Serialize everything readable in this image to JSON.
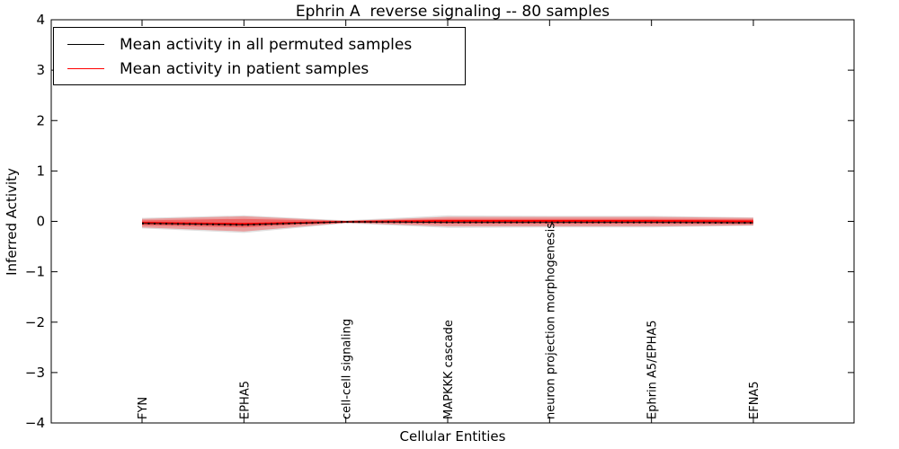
{
  "title": "Ephrin A  reverse signaling -- 80 samples",
  "axes": {
    "xlabel": "Cellular Entities",
    "ylabel": "Inferred Activity"
  },
  "legend": {
    "items": [
      {
        "label": "Mean activity in all permuted samples",
        "color": "#000000"
      },
      {
        "label": "Mean activity in patient samples",
        "color": "#ff0000"
      }
    ]
  },
  "colors": {
    "patient_line": "#ff0000",
    "permuted_line": "#000000",
    "patient_band_fill": "rgba(255,0,0,0.30)",
    "patient_inner_band_fill": "rgba(255,0,0,0.35)",
    "permuted_band_fill": "rgba(0,0,0,0.12)",
    "frame": "#000000",
    "background": "#ffffff"
  },
  "chart_data": {
    "type": "line",
    "title": "Ephrin A  reverse signaling -- 80 samples",
    "xlabel": "Cellular Entities",
    "ylabel": "Inferred Activity",
    "ylim": [
      -4,
      4
    ],
    "yticks": [
      -4,
      -3,
      -2,
      -1,
      0,
      1,
      2,
      3,
      4
    ],
    "grid": false,
    "legend_position": "upper left",
    "categories": [
      "FYN",
      "EPHA5",
      "cell-cell signaling",
      "MAPKKK cascade",
      "neuron projection morphogenesis",
      "Ephrin A5/EPHA5",
      "EFNA5"
    ],
    "series": [
      {
        "name": "Mean activity in all permuted samples",
        "color": "#000000",
        "line_style": "dotted",
        "values": [
          -0.04,
          -0.07,
          -0.01,
          -0.02,
          -0.02,
          -0.02,
          -0.03
        ]
      },
      {
        "name": "Mean activity in patient samples",
        "color": "#ff0000",
        "line_style": "solid",
        "values": [
          -0.03,
          -0.05,
          -0.01,
          0.01,
          0.01,
          0.01,
          0.0
        ]
      }
    ],
    "bands": [
      {
        "name": "permuted samples spread",
        "fill": "rgba(0,0,0,0.12)",
        "upper": [
          0.07,
          0.12,
          0.02,
          0.12,
          0.11,
          0.11,
          0.08
        ],
        "lower": [
          -0.14,
          -0.23,
          -0.04,
          -0.13,
          -0.12,
          -0.12,
          -0.09
        ]
      },
      {
        "name": "patient samples spread",
        "fill": "rgba(255,0,0,0.30)",
        "upper": [
          0.05,
          0.1,
          0.01,
          0.09,
          0.09,
          0.09,
          0.07
        ],
        "lower": [
          -0.12,
          -0.2,
          -0.03,
          -0.1,
          -0.1,
          -0.1,
          -0.08
        ]
      },
      {
        "name": "patient samples inner spread",
        "fill": "rgba(255,0,0,0.35)",
        "upper": [
          0.02,
          0.05,
          0.01,
          0.05,
          0.05,
          0.05,
          0.04
        ],
        "lower": [
          -0.08,
          -0.12,
          -0.02,
          -0.05,
          -0.05,
          -0.05,
          -0.05
        ]
      }
    ]
  }
}
